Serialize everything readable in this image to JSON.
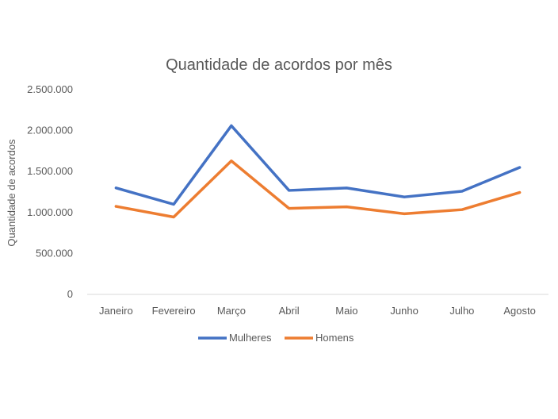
{
  "chart_data": {
    "type": "line",
    "title": "Quantidade de acordos por mês",
    "xlabel": "",
    "ylabel": "Quantidade de acordos",
    "categories": [
      "Janeiro",
      "Fevereiro",
      "Março",
      "Abril",
      "Maio",
      "Junho",
      "Julho",
      "Agosto"
    ],
    "series": [
      {
        "name": "Mulheres",
        "color": "#4472C4",
        "values": [
          1300000,
          1100000,
          2060000,
          1270000,
          1300000,
          1190000,
          1260000,
          1550000
        ]
      },
      {
        "name": "Homens",
        "color": "#ED7D31",
        "values": [
          1075000,
          945000,
          1630000,
          1050000,
          1070000,
          985000,
          1035000,
          1245000
        ]
      }
    ],
    "ylim": [
      0,
      2500000
    ],
    "yticks": [
      0,
      500000,
      1000000,
      1500000,
      2000000,
      2500000
    ],
    "ytick_labels": [
      "0",
      "500.000",
      "1.000.000",
      "1.500.000",
      "2.000.000",
      "2.500.000"
    ],
    "grid": false,
    "legend_position": "bottom"
  }
}
